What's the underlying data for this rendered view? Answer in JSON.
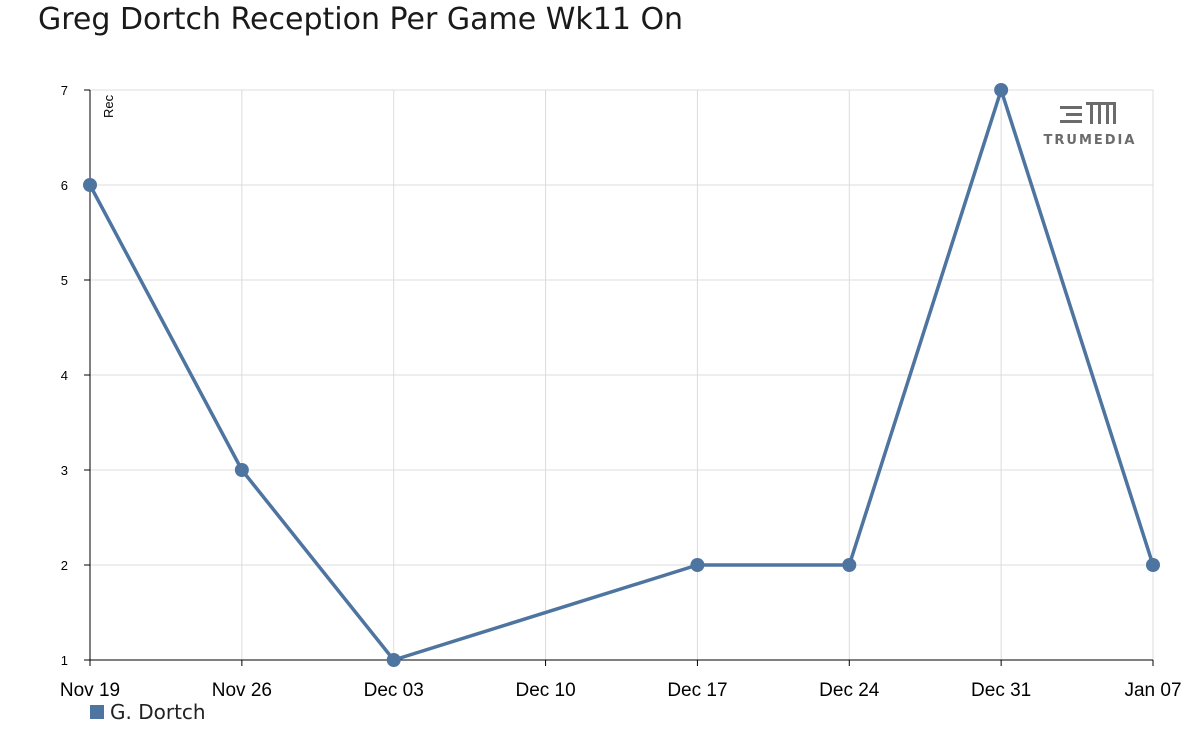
{
  "title": "Greg Dortch Reception Per Game Wk11 On",
  "logo": {
    "text": "TRUMEDIA",
    "icon": "trumedia-logo"
  },
  "colors": {
    "series": "#4e74a0",
    "grid": "#dcdcdc",
    "axis": "#000000"
  },
  "chart_data": {
    "type": "line",
    "title": "Greg Dortch Reception Per Game Wk11 On",
    "xlabel": "",
    "ylabel": "Rec",
    "x_tick_labels": [
      "Nov 19",
      "Nov 26",
      "Dec 03",
      "Dec 10",
      "Dec 17",
      "Dec 24",
      "Dec 31",
      "Jan 07"
    ],
    "ylim": [
      1,
      7
    ],
    "y_ticks": [
      1,
      2,
      3,
      4,
      5,
      6,
      7
    ],
    "grid": true,
    "legend_position": "bottom-left",
    "series": [
      {
        "name": "G. Dortch",
        "color": "#4e74a0",
        "points": [
          {
            "x": "Nov 19",
            "y": 6
          },
          {
            "x": "Nov 26",
            "y": 3
          },
          {
            "x": "Dec 03",
            "y": 1
          },
          {
            "x": "Dec 17",
            "y": 2
          },
          {
            "x": "Dec 24",
            "y": 2
          },
          {
            "x": "Dec 31",
            "y": 7
          },
          {
            "x": "Jan 07",
            "y": 2
          }
        ]
      }
    ]
  }
}
